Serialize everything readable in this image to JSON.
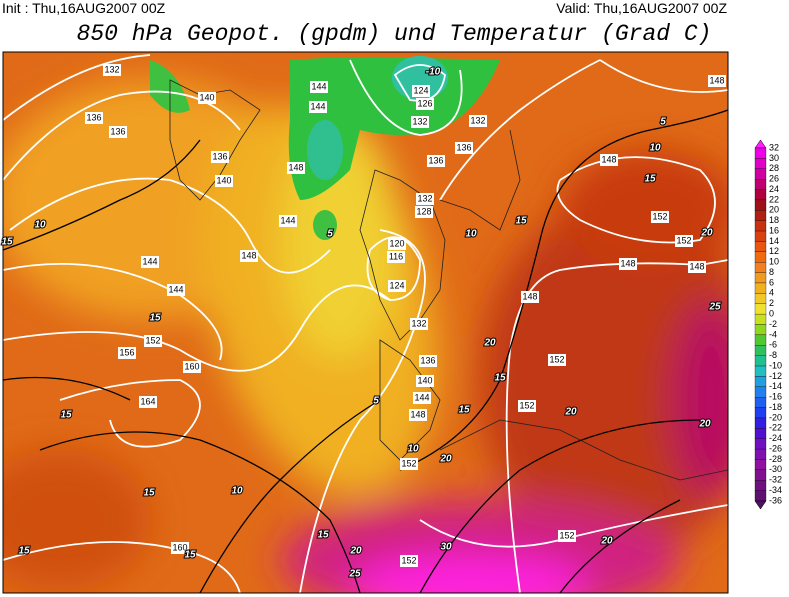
{
  "header": {
    "init": "Init : Thu,16AUG2007 00Z",
    "valid": "Valid: Thu,16AUG2007 00Z",
    "title": "850 hPa Geopot. (gpdm) und Temperatur (Grad C)"
  },
  "legend": {
    "labels": [
      32,
      30,
      28,
      26,
      24,
      22,
      20,
      18,
      16,
      14,
      12,
      10,
      8,
      6,
      4,
      2,
      0,
      -2,
      -4,
      -6,
      -8,
      -10,
      -12,
      -14,
      -16,
      -18,
      -20,
      -22,
      -24,
      -26,
      -28,
      -30,
      -32,
      -34,
      -36
    ],
    "colors": [
      "#ff20ff",
      "#f000e8",
      "#e000c8",
      "#d000a0",
      "#c00070",
      "#b00040",
      "#a01018",
      "#b02010",
      "#c83010",
      "#d84010",
      "#e85510",
      "#f06a10",
      "#f08020",
      "#f09a20",
      "#f0b020",
      "#f0c828",
      "#f0e030",
      "#c8e020",
      "#90d820",
      "#50c830",
      "#30c060",
      "#20c090",
      "#20c0c0",
      "#20a0e0",
      "#2080f0",
      "#2060f0",
      "#2040f0",
      "#3020e0",
      "#5010d0",
      "#7010c0",
      "#8010b0",
      "#9010a0",
      "#801090",
      "#701080",
      "#601070",
      "#501060"
    ]
  },
  "geopotential_labels": [
    132,
    140,
    136,
    136,
    136,
    140,
    144,
    144,
    152,
    156,
    160,
    164,
    160,
    148,
    144,
    148,
    144,
    144,
    124,
    126,
    132,
    132,
    136,
    136,
    132,
    128,
    120,
    116,
    124,
    132,
    136,
    140,
    144,
    148,
    152,
    148,
    152,
    152,
    152,
    152,
    152,
    152,
    148,
    148,
    148,
    148
  ],
  "temperature_labels": [
    15,
    10,
    15,
    15,
    15,
    10,
    15,
    15,
    15,
    20,
    25,
    30,
    20,
    15,
    15,
    20,
    20,
    20,
    20,
    20,
    25,
    15,
    15,
    10,
    5,
    10,
    5,
    5,
    10,
    -10
  ]
}
